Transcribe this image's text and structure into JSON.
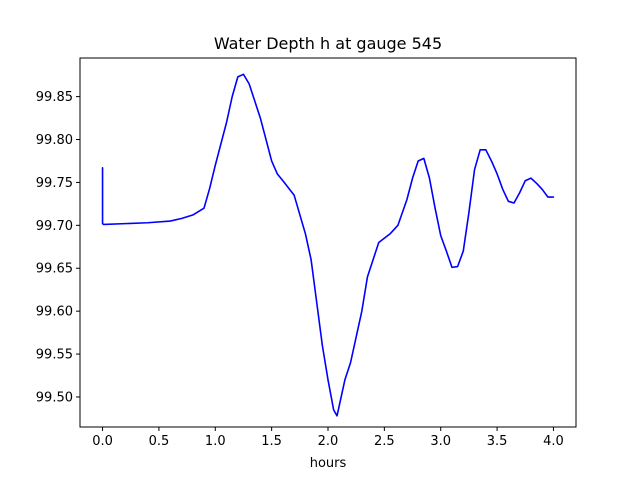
{
  "chart_data": {
    "type": "line",
    "title": "Water Depth h at gauge 545",
    "xlabel": "hours",
    "ylabel": "",
    "xlim": [
      -0.2,
      4.2
    ],
    "ylim": [
      99.465,
      99.895
    ],
    "xticks": [
      0.0,
      0.5,
      1.0,
      1.5,
      2.0,
      2.5,
      3.0,
      3.5,
      4.0
    ],
    "xtick_labels": [
      "0.0",
      "0.5",
      "1.0",
      "1.5",
      "2.0",
      "2.5",
      "3.0",
      "3.5",
      "4.0"
    ],
    "yticks": [
      99.5,
      99.55,
      99.6,
      99.65,
      99.7,
      99.75,
      99.8,
      99.85
    ],
    "ytick_labels": [
      "99.50",
      "99.55",
      "99.60",
      "99.65",
      "99.70",
      "99.75",
      "99.80",
      "99.85"
    ],
    "grid": false,
    "series": [
      {
        "color": "#0000ff",
        "x": [
          0.0,
          0.0,
          0.01,
          0.2,
          0.4,
          0.6,
          0.7,
          0.8,
          0.9,
          0.95,
          1.0,
          1.1,
          1.15,
          1.2,
          1.25,
          1.3,
          1.4,
          1.5,
          1.55,
          1.6,
          1.7,
          1.8,
          1.85,
          1.9,
          1.95,
          2.0,
          2.05,
          2.08,
          2.1,
          2.15,
          2.2,
          2.3,
          2.35,
          2.45,
          2.55,
          2.62,
          2.7,
          2.75,
          2.8,
          2.85,
          2.9,
          2.95,
          3.0,
          3.05,
          3.1,
          3.15,
          3.2,
          3.25,
          3.3,
          3.35,
          3.4,
          3.45,
          3.5,
          3.55,
          3.6,
          3.65,
          3.7,
          3.75,
          3.8,
          3.85,
          3.9,
          3.95,
          4.0
        ],
        "y": [
          99.767,
          99.702,
          99.701,
          99.702,
          99.703,
          99.705,
          99.708,
          99.712,
          99.72,
          99.743,
          99.77,
          99.82,
          99.85,
          99.873,
          99.876,
          99.865,
          99.825,
          99.775,
          99.76,
          99.752,
          99.735,
          99.69,
          99.66,
          99.61,
          99.56,
          99.52,
          99.485,
          99.478,
          99.49,
          99.52,
          99.54,
          99.6,
          99.64,
          99.68,
          99.69,
          99.7,
          99.73,
          99.755,
          99.775,
          99.778,
          99.755,
          99.72,
          99.688,
          99.67,
          99.651,
          99.652,
          99.67,
          99.715,
          99.765,
          99.788,
          99.788,
          99.775,
          99.76,
          99.742,
          99.728,
          99.726,
          99.738,
          99.752,
          99.755,
          99.749,
          99.742,
          99.733,
          99.733
        ]
      }
    ]
  }
}
